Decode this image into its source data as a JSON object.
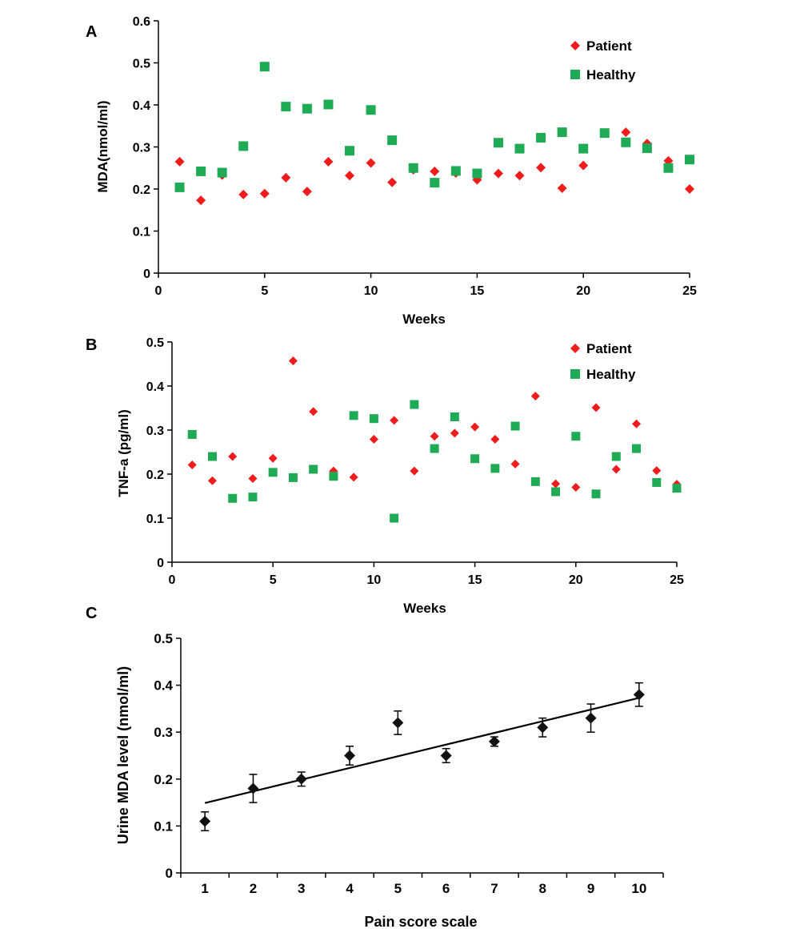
{
  "colors": {
    "patient": "#ee1c1c",
    "healthy": "#1faa55",
    "panel_c": "#111111"
  },
  "chart_data": [
    {
      "panel_label": "A",
      "type": "scatter",
      "xlabel": "Weeks",
      "ylabel": "MDA(nmol/ml)",
      "xlim": [
        0,
        25
      ],
      "ylim": [
        0,
        0.6
      ],
      "xticks": [
        "0",
        "5",
        "10",
        "15",
        "20",
        "25"
      ],
      "yticks": [
        "0",
        "0.1",
        "0.2",
        "0.3",
        "0.4",
        "0.5",
        "0.6"
      ],
      "grid": false,
      "legend_position": "top-right",
      "series": [
        {
          "name": "Patient",
          "marker": "diamond",
          "x": [
            1,
            2,
            3,
            4,
            5,
            6,
            7,
            8,
            9,
            10,
            11,
            12,
            13,
            14,
            15,
            16,
            17,
            18,
            19,
            20,
            21,
            22,
            23,
            24,
            25
          ],
          "y": [
            0.265,
            0.173,
            0.233,
            0.187,
            0.189,
            0.227,
            0.194,
            0.265,
            0.232,
            0.262,
            0.216,
            0.246,
            0.242,
            0.238,
            0.222,
            0.237,
            0.232,
            0.251,
            0.202,
            0.256,
            0.333,
            0.335,
            0.308,
            0.267,
            0.2
          ]
        },
        {
          "name": "Healthy",
          "marker": "square",
          "x": [
            1,
            2,
            3,
            4,
            5,
            6,
            7,
            8,
            9,
            10,
            11,
            12,
            13,
            14,
            15,
            16,
            17,
            18,
            19,
            20,
            21,
            22,
            23,
            24,
            25
          ],
          "y": [
            0.204,
            0.242,
            0.239,
            0.302,
            0.491,
            0.396,
            0.391,
            0.401,
            0.291,
            0.388,
            0.316,
            0.25,
            0.215,
            0.243,
            0.237,
            0.31,
            0.296,
            0.322,
            0.335,
            0.296,
            0.333,
            0.311,
            0.297,
            0.25,
            0.27
          ]
        }
      ]
    },
    {
      "panel_label": "B",
      "type": "scatter",
      "xlabel": "Weeks",
      "ylabel": "TNF-a (pg/ml)",
      "xlim": [
        0,
        25
      ],
      "ylim": [
        0,
        0.5
      ],
      "xticks": [
        "0",
        "5",
        "10",
        "15",
        "20",
        "25"
      ],
      "yticks": [
        "0",
        "0.1",
        "0.2",
        "0.3",
        "0.4",
        "0.5"
      ],
      "grid": false,
      "legend_position": "top-right",
      "series": [
        {
          "name": "Patient",
          "marker": "diamond",
          "x": [
            1,
            2,
            3,
            4,
            5,
            6,
            7,
            8,
            9,
            10,
            11,
            12,
            13,
            14,
            15,
            16,
            17,
            18,
            19,
            20,
            21,
            22,
            23,
            24,
            25
          ],
          "y": [
            0.221,
            0.185,
            0.24,
            0.19,
            0.236,
            0.457,
            0.342,
            0.207,
            0.193,
            0.279,
            0.322,
            0.207,
            0.286,
            0.293,
            0.307,
            0.279,
            0.223,
            0.377,
            0.178,
            0.17,
            0.351,
            0.211,
            0.314,
            0.208,
            0.177
          ]
        },
        {
          "name": "Healthy",
          "marker": "square",
          "x": [
            1,
            2,
            3,
            4,
            5,
            6,
            7,
            8,
            9,
            10,
            11,
            12,
            13,
            14,
            15,
            16,
            17,
            18,
            19,
            20,
            21,
            22,
            23,
            24,
            25
          ],
          "y": [
            0.29,
            0.24,
            0.145,
            0.148,
            0.204,
            0.192,
            0.211,
            0.195,
            0.333,
            0.326,
            0.1,
            0.358,
            0.258,
            0.33,
            0.235,
            0.213,
            0.309,
            0.183,
            0.16,
            0.286,
            0.155,
            0.24,
            0.258,
            0.181,
            0.168
          ]
        }
      ]
    },
    {
      "panel_label": "C",
      "type": "scatter",
      "xlabel": "Pain score scale",
      "ylabel": "Urine MDA level (nmol/ml)",
      "xlim": [
        0.5,
        10.5
      ],
      "ylim": [
        0,
        0.5
      ],
      "xticks": [
        "1",
        "2",
        "3",
        "4",
        "5",
        "6",
        "7",
        "8",
        "9",
        "10"
      ],
      "yticks": [
        "0",
        "0.1",
        "0.2",
        "0.3",
        "0.4",
        "0.5"
      ],
      "grid": false,
      "series": [
        {
          "marker": "diamond",
          "x": [
            1,
            2,
            3,
            4,
            5,
            6,
            7,
            8,
            9,
            10
          ],
          "y": [
            0.11,
            0.18,
            0.2,
            0.25,
            0.32,
            0.25,
            0.28,
            0.31,
            0.33,
            0.38
          ],
          "error": [
            0.02,
            0.03,
            0.015,
            0.02,
            0.025,
            0.015,
            0.01,
            0.02,
            0.03,
            0.025
          ]
        }
      ],
      "trendline": {
        "x": [
          1,
          10
        ],
        "y": [
          0.149,
          0.373
        ]
      }
    }
  ]
}
